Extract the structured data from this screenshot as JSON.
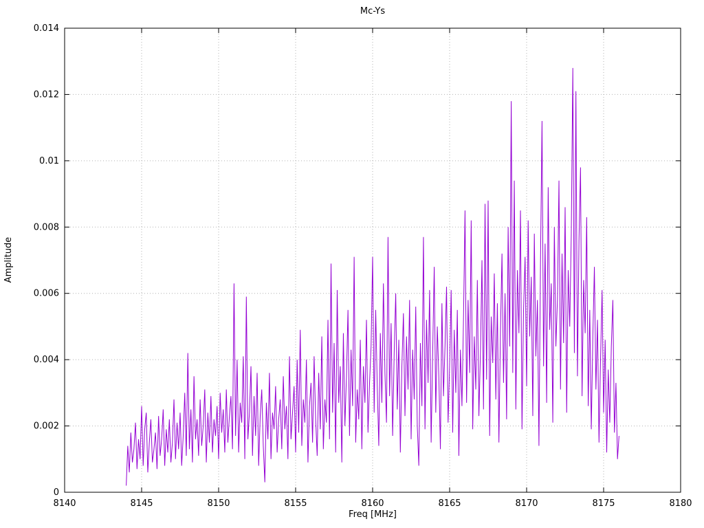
{
  "chart_data": {
    "type": "line",
    "title": "Mc-Ys",
    "xlabel": "Freq [MHz]",
    "ylabel": "Amplitude",
    "xlim": [
      8140,
      8180
    ],
    "ylim": [
      0,
      0.014
    ],
    "grid": true,
    "legend_position": "none",
    "line_color": "#9400d3",
    "grid_color": "#b0b0b0",
    "x_ticks": [
      8140,
      8145,
      8150,
      8155,
      8160,
      8165,
      8170,
      8175,
      8180
    ],
    "x_tick_labels": [
      "8140",
      "8145",
      "8150",
      "8155",
      "8160",
      "8165",
      "8170",
      "8175",
      "8180"
    ],
    "y_ticks": [
      0,
      0.002,
      0.004,
      0.006,
      0.008,
      0.01,
      0.012,
      0.014
    ],
    "y_tick_labels": [
      "0",
      "0.002",
      "0.004",
      "0.006",
      "0.008",
      "0.01",
      "0.012",
      "0.014"
    ],
    "series": [
      {
        "name": "Mc-Ys",
        "x0": 8144.0,
        "dx": 0.1,
        "y": [
          0.0002,
          0.0014,
          0.0006,
          0.0018,
          0.0009,
          0.0013,
          0.0021,
          0.0007,
          0.0016,
          0.001,
          0.0026,
          0.0008,
          0.0019,
          0.0024,
          0.0006,
          0.0015,
          0.0022,
          0.0009,
          0.0013,
          0.0018,
          0.0007,
          0.0023,
          0.0011,
          0.0016,
          0.0025,
          0.0008,
          0.0019,
          0.0012,
          0.0022,
          0.0009,
          0.0015,
          0.0028,
          0.001,
          0.0021,
          0.0013,
          0.0024,
          0.0008,
          0.0017,
          0.003,
          0.0011,
          0.0042,
          0.0013,
          0.0025,
          0.0009,
          0.0035,
          0.0016,
          0.0022,
          0.0011,
          0.0028,
          0.0014,
          0.002,
          0.0031,
          0.0009,
          0.0024,
          0.0015,
          0.0029,
          0.0012,
          0.0022,
          0.0017,
          0.0026,
          0.001,
          0.003,
          0.0018,
          0.0025,
          0.0012,
          0.0031,
          0.0015,
          0.0023,
          0.0029,
          0.0013,
          0.0063,
          0.0017,
          0.004,
          0.0012,
          0.0027,
          0.0021,
          0.0041,
          0.001,
          0.0059,
          0.0016,
          0.0024,
          0.0038,
          0.0011,
          0.0029,
          0.0017,
          0.0036,
          0.0008,
          0.0023,
          0.0031,
          0.0014,
          0.0003,
          0.0027,
          0.0016,
          0.0036,
          0.001,
          0.0024,
          0.0019,
          0.0032,
          0.0012,
          0.0022,
          0.0028,
          0.0013,
          0.0035,
          0.0019,
          0.0026,
          0.001,
          0.0041,
          0.0016,
          0.0024,
          0.0032,
          0.0012,
          0.004,
          0.0018,
          0.0049,
          0.0014,
          0.0028,
          0.0021,
          0.004,
          0.0009,
          0.0026,
          0.0033,
          0.0015,
          0.0041,
          0.0022,
          0.0011,
          0.0036,
          0.0019,
          0.0047,
          0.0013,
          0.0028,
          0.0021,
          0.0052,
          0.0016,
          0.0069,
          0.0024,
          0.0045,
          0.0012,
          0.0061,
          0.0027,
          0.0038,
          0.0009,
          0.0048,
          0.002,
          0.0035,
          0.0055,
          0.0017,
          0.0043,
          0.0026,
          0.0071,
          0.0015,
          0.0031,
          0.0022,
          0.0046,
          0.0013,
          0.0038,
          0.0027,
          0.0052,
          0.0018,
          0.0033,
          0.0044,
          0.0071,
          0.0024,
          0.0055,
          0.0032,
          0.0014,
          0.0048,
          0.0027,
          0.0063,
          0.0036,
          0.0021,
          0.0077,
          0.0029,
          0.0051,
          0.0017,
          0.0042,
          0.006,
          0.0025,
          0.0046,
          0.0012,
          0.0038,
          0.0054,
          0.0023,
          0.0047,
          0.0031,
          0.0058,
          0.0016,
          0.0043,
          0.0028,
          0.0056,
          0.002,
          0.0008,
          0.0045,
          0.0026,
          0.0077,
          0.0019,
          0.0052,
          0.0033,
          0.0061,
          0.0015,
          0.0042,
          0.0068,
          0.0024,
          0.005,
          0.0035,
          0.0013,
          0.0057,
          0.0029,
          0.0044,
          0.0062,
          0.0021,
          0.0038,
          0.0061,
          0.0018,
          0.0049,
          0.003,
          0.0055,
          0.0011,
          0.0043,
          0.0026,
          0.0052,
          0.0085,
          0.0027,
          0.0058,
          0.0036,
          0.0082,
          0.0019,
          0.0047,
          0.0031,
          0.0064,
          0.0023,
          0.0042,
          0.007,
          0.0025,
          0.0087,
          0.0034,
          0.0088,
          0.0017,
          0.0053,
          0.0039,
          0.0066,
          0.0028,
          0.0057,
          0.0015,
          0.0048,
          0.0072,
          0.0033,
          0.006,
          0.0022,
          0.008,
          0.0044,
          0.0118,
          0.0036,
          0.0094,
          0.0025,
          0.0067,
          0.0048,
          0.0085,
          0.0019,
          0.0055,
          0.0071,
          0.0032,
          0.0082,
          0.0047,
          0.0065,
          0.0023,
          0.0078,
          0.0041,
          0.0058,
          0.0014,
          0.0069,
          0.0112,
          0.0038,
          0.0075,
          0.0027,
          0.0092,
          0.0049,
          0.0063,
          0.0021,
          0.008,
          0.0044,
          0.0058,
          0.0094,
          0.0031,
          0.0072,
          0.0045,
          0.0086,
          0.0024,
          0.0067,
          0.005,
          0.0078,
          0.0128,
          0.0042,
          0.0121,
          0.0035,
          0.0076,
          0.0098,
          0.0029,
          0.0064,
          0.0048,
          0.0083,
          0.0026,
          0.0055,
          0.0019,
          0.0047,
          0.0068,
          0.0031,
          0.0052,
          0.0015,
          0.004,
          0.0061,
          0.0024,
          0.0046,
          0.0012,
          0.0037,
          0.0021,
          0.0044,
          0.0058,
          0.0018,
          0.0033,
          0.001,
          0.0017
        ]
      }
    ]
  }
}
